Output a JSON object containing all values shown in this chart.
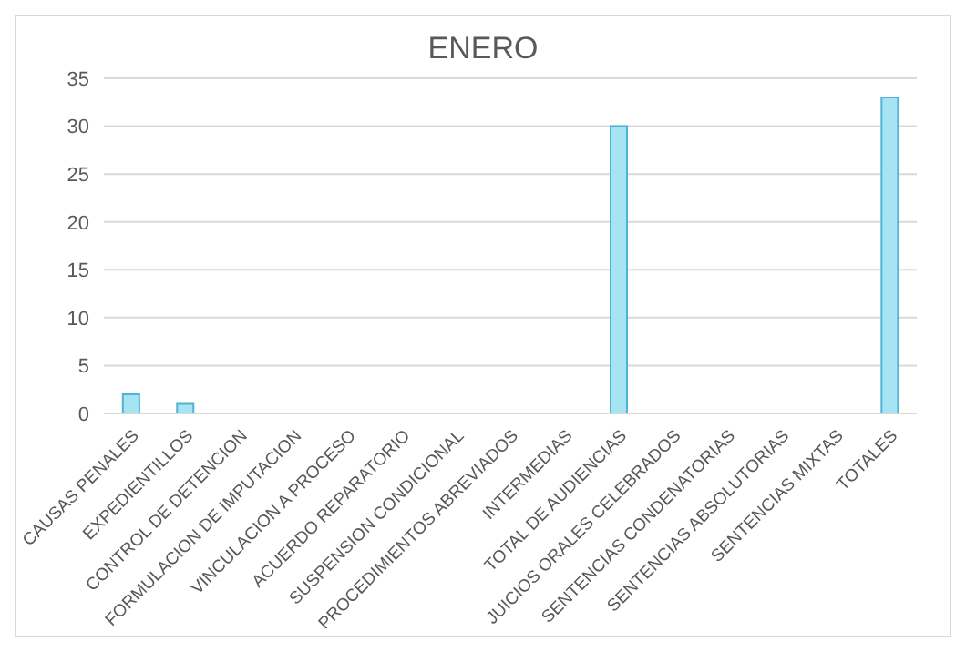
{
  "chart_data": {
    "type": "bar",
    "title": "ENERO",
    "categories": [
      "CAUSAS PENALES",
      "EXPEDIENTILLOS",
      "CONTROL DE DETENCION",
      "FORMULACION DE IMPUTACION",
      "VINCULACION A PROCESO",
      "ACUERDO REPARATORIO",
      "SUSPENSION CONDICIONAL",
      "PROCEDIMIENTOS ABREVIADOS",
      "INTERMEDIAS",
      "TOTAL DE AUDIENCIAS",
      "JUICIOS ORALES CELEBRADOS",
      "SENTENCIAS CONDENATORIAS",
      "SENTENCIAS ABSOLUTORIAS",
      "SENTENCIAS MIXTAS",
      "TOTALES"
    ],
    "values": [
      2,
      1,
      0,
      0,
      0,
      0,
      0,
      0,
      0,
      30,
      0,
      0,
      0,
      0,
      33
    ],
    "color": "#a6e4f4",
    "ylim": [
      0,
      35
    ],
    "yticks": [
      0,
      5,
      10,
      15,
      20,
      25,
      30,
      35
    ],
    "grid": "y"
  }
}
